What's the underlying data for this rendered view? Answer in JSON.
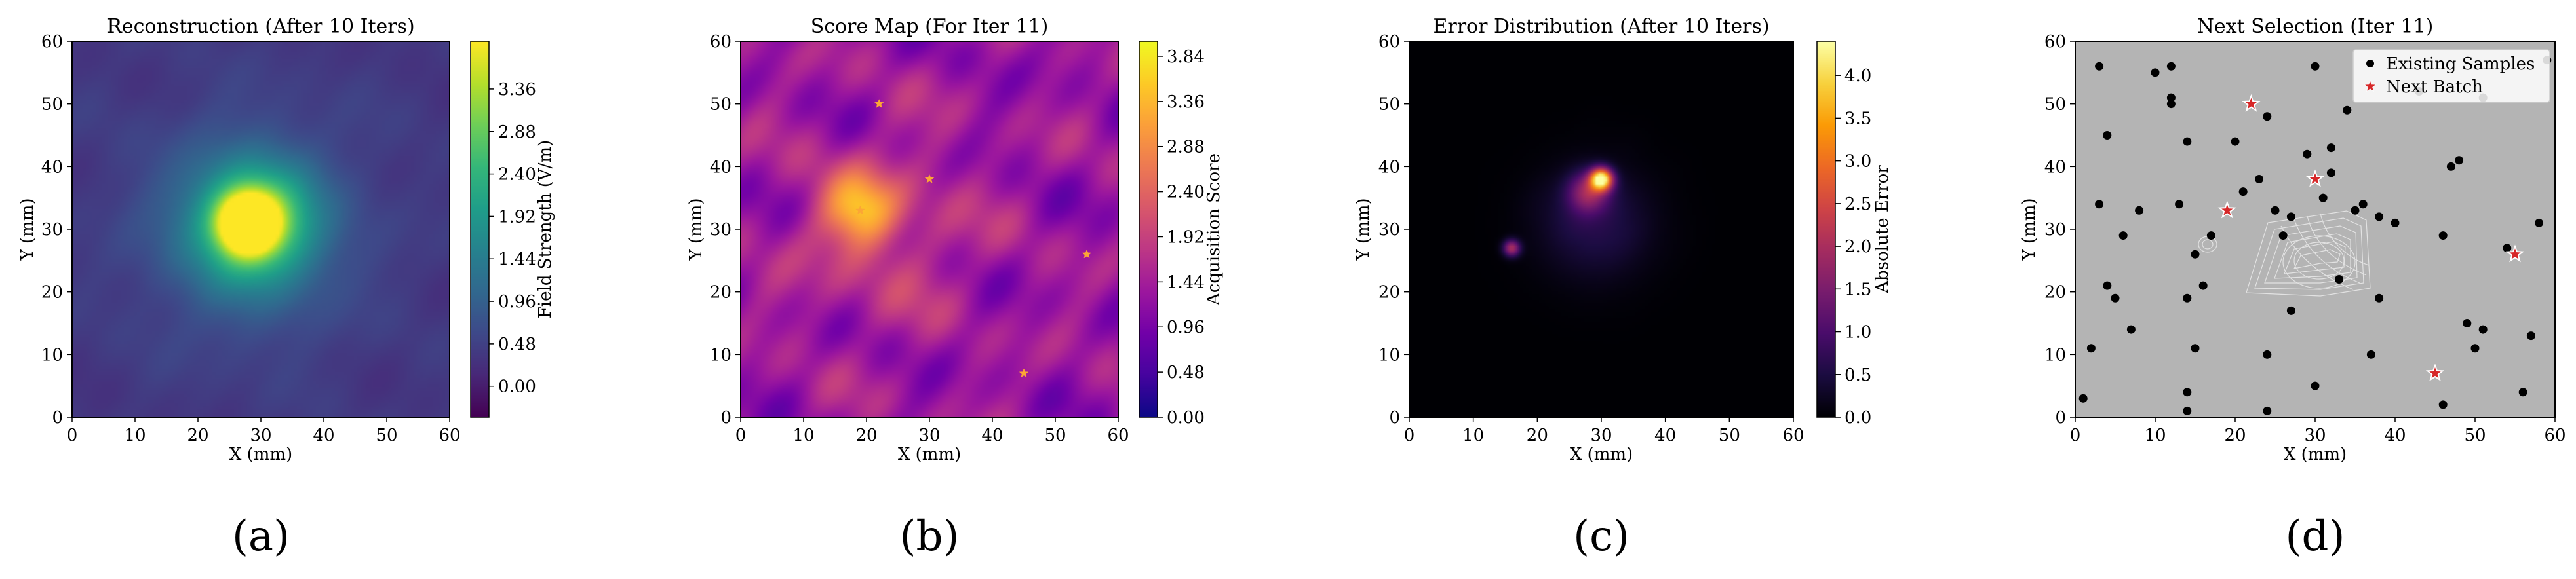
{
  "chart_data": [
    {
      "type": "heatmap",
      "title": "Reconstruction (After 10 Iters)",
      "xlabel": "X (mm)",
      "ylabel": "Y (mm)",
      "xlim": [
        0,
        60
      ],
      "ylim": [
        0,
        60
      ],
      "xticks": [
        "0",
        "10",
        "20",
        "30",
        "40",
        "50",
        "60"
      ],
      "yticks": [
        "0",
        "10",
        "20",
        "30",
        "40",
        "50",
        "60"
      ],
      "colormap": "viridis",
      "colorbar": {
        "label": "Field Strength (V/m)",
        "range": [
          -0.35,
          3.9
        ],
        "ticks": [
          "0.00",
          "0.48",
          "0.96",
          "1.44",
          "1.92",
          "2.40",
          "2.88",
          "3.36"
        ]
      },
      "background_level": 0.35,
      "hotspots": [
        {
          "x": 28,
          "y": 31,
          "value": 3.6,
          "spread": 3
        },
        {
          "x": 29,
          "y": 31,
          "value": 2.4,
          "spread": 6
        },
        {
          "x": 28,
          "y": 30,
          "value": 1.0,
          "spread": 11
        }
      ],
      "panel_label": "(a)"
    },
    {
      "type": "heatmap",
      "title": "Score Map (For Iter 11)",
      "xlabel": "X (mm)",
      "ylabel": "Y (mm)",
      "xlim": [
        0,
        60
      ],
      "ylim": [
        0,
        60
      ],
      "xticks": [
        "0",
        "10",
        "20",
        "30",
        "40",
        "50",
        "60"
      ],
      "yticks": [
        "0",
        "10",
        "20",
        "30",
        "40",
        "50",
        "60"
      ],
      "colormap": "plasma",
      "colorbar": {
        "label": "Acquisition Score",
        "range": [
          0,
          4.0
        ],
        "ticks": [
          "0.00",
          "0.48",
          "0.96",
          "1.44",
          "1.92",
          "2.40",
          "2.88",
          "3.36",
          "3.84"
        ]
      },
      "background_level": 1.3,
      "hotspots": [
        {
          "x": 19,
          "y": 33,
          "value": 1.6,
          "spread": 4
        },
        {
          "x": 22,
          "y": 30,
          "value": 0.6,
          "spread": 10
        }
      ],
      "markers": [
        {
          "x": 22,
          "y": 50
        },
        {
          "x": 30,
          "y": 38
        },
        {
          "x": 19,
          "y": 33
        },
        {
          "x": 55,
          "y": 26
        },
        {
          "x": 45,
          "y": 7
        }
      ],
      "panel_label": "(b)"
    },
    {
      "type": "heatmap",
      "title": "Error Distribution (After 10 Iters)",
      "xlabel": "X (mm)",
      "ylabel": "Y (mm)",
      "xlim": [
        0,
        60
      ],
      "ylim": [
        0,
        60
      ],
      "xticks": [
        "0",
        "10",
        "20",
        "30",
        "40",
        "50",
        "60"
      ],
      "yticks": [
        "0",
        "10",
        "20",
        "30",
        "40",
        "50",
        "60"
      ],
      "colormap": "inferno",
      "colorbar": {
        "label": "Absolute Error",
        "range": [
          0,
          4.4
        ],
        "ticks": [
          "0.0",
          "0.5",
          "1.0",
          "1.5",
          "2.0",
          "2.5",
          "3.0",
          "3.5",
          "4.0"
        ]
      },
      "background_level": 0.0,
      "hotspots": [
        {
          "x": 30,
          "y": 38,
          "value": 4.2,
          "spread": 1.2
        },
        {
          "x": 28,
          "y": 36,
          "value": 1.6,
          "spread": 2.2
        },
        {
          "x": 16,
          "y": 27,
          "value": 2.0,
          "spread": 0.9
        },
        {
          "x": 29,
          "y": 31,
          "value": 0.6,
          "spread": 6
        }
      ],
      "panel_label": "(c)"
    },
    {
      "type": "scatter",
      "title": "Next Selection (Iter 11)",
      "xlabel": "X (mm)",
      "ylabel": "Y (mm)",
      "xlim": [
        0,
        60
      ],
      "ylim": [
        0,
        60
      ],
      "xticks": [
        "0",
        "10",
        "20",
        "30",
        "40",
        "50",
        "60"
      ],
      "yticks": [
        "0",
        "10",
        "20",
        "30",
        "40",
        "50",
        "60"
      ],
      "background_color": "#b4b4b4",
      "legend_placement": "top-right",
      "series": [
        {
          "name": "Existing Samples",
          "color": "#000000",
          "marker": "circle",
          "points": [
            [
              1,
              3
            ],
            [
              2,
              11
            ],
            [
              3,
              34
            ],
            [
              3,
              56
            ],
            [
              4,
              45
            ],
            [
              4,
              21
            ],
            [
              5,
              19
            ],
            [
              6,
              29
            ],
            [
              7,
              14
            ],
            [
              8,
              33
            ],
            [
              10,
              55
            ],
            [
              12,
              56
            ],
            [
              12,
              51
            ],
            [
              12,
              50
            ],
            [
              13,
              34
            ],
            [
              14,
              44
            ],
            [
              14,
              19
            ],
            [
              15,
              26
            ],
            [
              15,
              11
            ],
            [
              14,
              4
            ],
            [
              14,
              1
            ],
            [
              16,
              21
            ],
            [
              17,
              29
            ],
            [
              20,
              44
            ],
            [
              21,
              36
            ],
            [
              23,
              38
            ],
            [
              24,
              48
            ],
            [
              24,
              10
            ],
            [
              24,
              1
            ],
            [
              25,
              33
            ],
            [
              26,
              29
            ],
            [
              27,
              32
            ],
            [
              27,
              17
            ],
            [
              29,
              42
            ],
            [
              30,
              56
            ],
            [
              30,
              5
            ],
            [
              31,
              35
            ],
            [
              32,
              43
            ],
            [
              32,
              39
            ],
            [
              33,
              22
            ],
            [
              34,
              49
            ],
            [
              35,
              33
            ],
            [
              36,
              34
            ],
            [
              37,
              10
            ],
            [
              38,
              32
            ],
            [
              38,
              19
            ],
            [
              40,
              31
            ],
            [
              43,
              52
            ],
            [
              46,
              29
            ],
            [
              46,
              2
            ],
            [
              47,
              40
            ],
            [
              48,
              41
            ],
            [
              49,
              15
            ],
            [
              50,
              11
            ],
            [
              51,
              14
            ],
            [
              51,
              51
            ],
            [
              54,
              27
            ],
            [
              56,
              4
            ],
            [
              57,
              13
            ],
            [
              58,
              31
            ],
            [
              59,
              57
            ]
          ]
        },
        {
          "name": "Next Batch",
          "color": "#d62728",
          "marker": "star",
          "points": [
            [
              22,
              50
            ],
            [
              30,
              38
            ],
            [
              19,
              33
            ],
            [
              55,
              26
            ],
            [
              45,
              7
            ]
          ]
        }
      ],
      "panel_label": "(d)"
    }
  ]
}
